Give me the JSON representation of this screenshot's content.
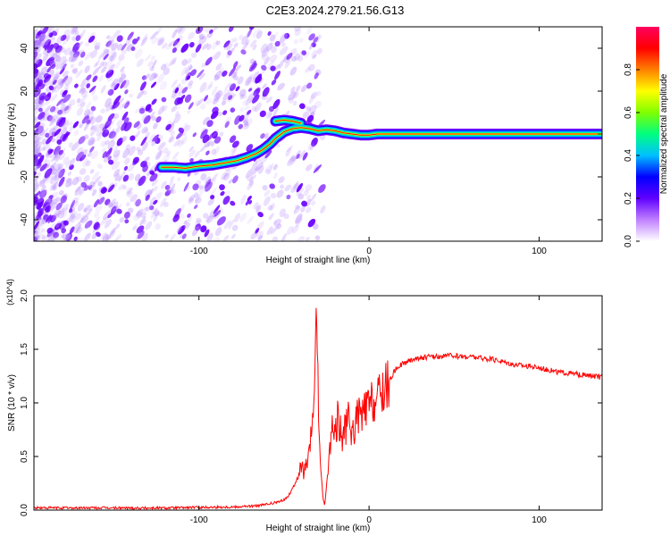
{
  "title": "C2E3.2024.279.21.56.G13",
  "chart_data": [
    {
      "type": "heatmap",
      "xlabel": "Height of straight line (km)",
      "ylabel": "Frequency (Hz)",
      "xlim": [
        -197,
        137
      ],
      "ylim": [
        -50,
        50
      ],
      "xticks": [
        -100,
        0,
        100
      ],
      "xtick_labels": [
        "-100",
        "0",
        "100"
      ],
      "yticks": [
        -40,
        -20,
        0,
        20,
        40
      ],
      "ytick_labels": [
        "-40",
        "-20",
        "0",
        "20",
        "40"
      ],
      "colorbar": {
        "label": "Normalized spectral amplitude",
        "range": [
          0,
          1
        ],
        "ticks": [
          0.0,
          0.2,
          0.4,
          0.6,
          0.8
        ],
        "tick_labels": [
          "0.0",
          "0.2",
          "0.4",
          "0.6",
          "0.8"
        ],
        "colors": [
          "#ffffff",
          "#c080ff",
          "#6000ff",
          "#0000ff",
          "#00c0ff",
          "#00ff80",
          "#80ff00",
          "#ffff00",
          "#ff8000",
          "#ff0000",
          "#ff0060"
        ]
      },
      "signal_trace": {
        "x": [
          -122,
          -115,
          -108,
          -100,
          -92,
          -85,
          -78,
          -72,
          -66,
          -62,
          -58,
          -55,
          -50,
          -45,
          -40,
          -35,
          -30,
          -25,
          -20,
          -15,
          -10,
          -5,
          0,
          5,
          10,
          137
        ],
        "y": [
          -15.5,
          -15.5,
          -16,
          -15,
          -14.5,
          -13.5,
          -12.5,
          -11,
          -9,
          -7,
          -4.5,
          -2,
          1,
          2.5,
          3,
          2.5,
          1.5,
          2,
          1.5,
          0.5,
          0,
          -0.5,
          -0.5,
          0,
          0,
          0
        ],
        "hook": {
          "x": [
            -55,
            -50,
            -45,
            -40
          ],
          "y": [
            6,
            6.5,
            6,
            5
          ]
        }
      }
    },
    {
      "type": "line",
      "xlabel": "Height of straight line (km)",
      "ylabel": "SNR (10 * v/v)",
      "scale_label": "(x10^4)",
      "xlim": [
        -197,
        137
      ],
      "ylim": [
        0,
        2.0
      ],
      "xticks": [
        -100,
        0,
        100
      ],
      "xtick_labels": [
        "-100",
        "0",
        "100"
      ],
      "yticks": [
        0,
        0.5,
        1.0,
        1.5,
        2.0
      ],
      "ytick_labels": [
        "0.0",
        "0.5",
        "1.0",
        "1.5",
        "2.0"
      ],
      "color": "#ff0000",
      "series": [
        {
          "x": [
            -197,
            -160,
            -120,
            -80,
            -65,
            -58,
            -52,
            -48,
            -45,
            -42,
            -40,
            -38,
            -35,
            -33,
            -32,
            -31,
            -30,
            -29,
            -28,
            -27,
            -26,
            -24,
            -22,
            -20,
            -18,
            -16,
            -14,
            -12,
            -10,
            -8,
            -6,
            -4,
            -2,
            0,
            2,
            4,
            6,
            8,
            10,
            12,
            15,
            18,
            22,
            26,
            30,
            35,
            40,
            45,
            50,
            55,
            60,
            65,
            70,
            75,
            80,
            85,
            90,
            95,
            100,
            105,
            110,
            115,
            120,
            125,
            130,
            137
          ],
          "y": [
            0.02,
            0.02,
            0.02,
            0.03,
            0.04,
            0.06,
            0.08,
            0.12,
            0.2,
            0.3,
            0.4,
            0.35,
            0.5,
            0.9,
            1.2,
            1.95,
            1.1,
            0.6,
            0.3,
            0.1,
            0.05,
            0.4,
            0.8,
            0.7,
            0.9,
            0.65,
            0.75,
            0.85,
            0.7,
            0.8,
            0.9,
            0.85,
            0.95,
            0.95,
            1.0,
            1.02,
            1.05,
            1.1,
            1.15,
            1.2,
            1.3,
            1.35,
            1.38,
            1.41,
            1.42,
            1.43,
            1.43,
            1.44,
            1.44,
            1.43,
            1.43,
            1.42,
            1.41,
            1.4,
            1.38,
            1.36,
            1.35,
            1.34,
            1.33,
            1.31,
            1.29,
            1.28,
            1.27,
            1.26,
            1.25,
            1.24
          ]
        }
      ]
    }
  ]
}
